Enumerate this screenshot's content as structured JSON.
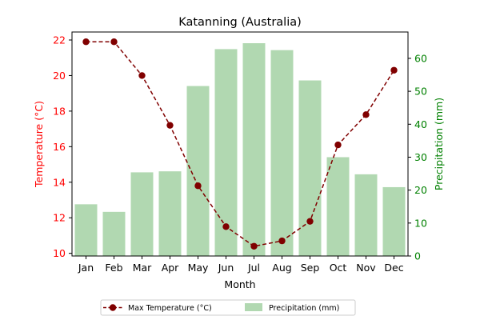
{
  "chart_data": {
    "type": "bar+line",
    "title": "Katanning (Australia)",
    "xlabel": "Month",
    "categories": [
      "Jan",
      "Feb",
      "Mar",
      "Apr",
      "May",
      "Jun",
      "Jul",
      "Aug",
      "Sep",
      "Oct",
      "Nov",
      "Dec"
    ],
    "y_left": {
      "label": "Temperature (°C)",
      "ylim": [
        9.85,
        22.45
      ],
      "ticks": [
        10,
        12,
        14,
        16,
        18,
        20,
        22
      ],
      "color": "#ff0000"
    },
    "y_right": {
      "label": "Precipitation (mm)",
      "ylim": [
        0,
        68
      ],
      "ticks": [
        0,
        10,
        20,
        30,
        40,
        50,
        60
      ],
      "color": "#008000"
    },
    "series": [
      {
        "name": "Max Temperature (°C)",
        "type": "line",
        "axis": "left",
        "color": "#800000",
        "style": "dashed",
        "marker": "circle",
        "values": [
          21.9,
          21.9,
          20.0,
          17.2,
          13.8,
          11.5,
          10.4,
          10.7,
          11.8,
          16.1,
          17.8,
          20.3
        ]
      },
      {
        "name": "Precipitation (mm)",
        "type": "bar",
        "axis": "right",
        "color": "#b1d8b1",
        "values": [
          15.7,
          13.4,
          25.4,
          25.7,
          51.6,
          62.8,
          64.6,
          62.5,
          53.3,
          30.0,
          24.8,
          20.9
        ]
      }
    ],
    "legend_position": "bottom-center",
    "grid": false
  }
}
